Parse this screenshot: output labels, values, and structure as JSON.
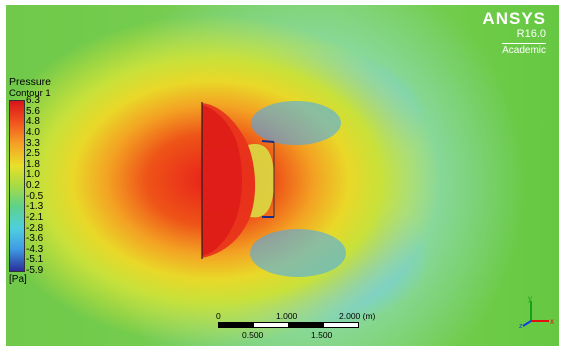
{
  "app": {
    "logo_name": "ANSYS",
    "version": "R16.0",
    "edition": "Academic"
  },
  "legend": {
    "title_line1": "Pressure",
    "title_line2": "Contour 1",
    "ticks": [
      "6.3",
      "5.6",
      "4.8",
      "4.0",
      "3.3",
      "2.5",
      "1.8",
      "1.0",
      "0.2",
      "-0.5",
      "-1.3",
      "-2.1",
      "-2.8",
      "-3.6",
      "-4.3",
      "-5.1",
      "-5.9"
    ],
    "unit": "[Pa]"
  },
  "scale_bar": {
    "top_labels": [
      "0",
      "1.000",
      "2.000 (m)"
    ],
    "bottom_labels": [
      "0.500",
      "1.500"
    ]
  },
  "axis_triad": {
    "x_label": "x",
    "y_label": "y",
    "z_label": "z",
    "x_color": "#e01010",
    "y_color": "#18a018",
    "z_color": "#1040e0"
  },
  "colors": {
    "high_pressure": "#e8201a",
    "low_pressure": "#2b2f9a",
    "ambient": "#70c94a"
  }
}
